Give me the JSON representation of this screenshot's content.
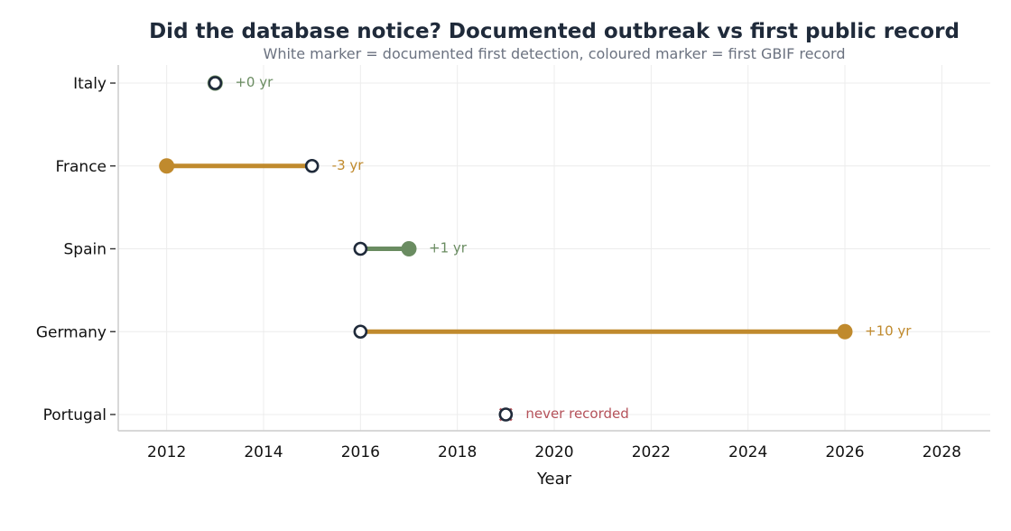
{
  "chart_data": {
    "type": "dumbbell",
    "title": "Did the database notice? Documented outbreak vs first public record",
    "subtitle": "White marker = documented first detection, coloured marker = first GBIF record",
    "xlabel": "Year",
    "ylabel": "",
    "xlim": [
      2011,
      2029
    ],
    "xticks": [
      2012,
      2014,
      2016,
      2018,
      2020,
      2022,
      2024,
      2026,
      2028
    ],
    "grid": true,
    "categories": [
      "Italy",
      "France",
      "Spain",
      "Germany",
      "Portugal"
    ],
    "rows": [
      {
        "country": "Italy",
        "detection": 2013,
        "gbif": 2013,
        "label": "+0 yr",
        "status": "match"
      },
      {
        "country": "France",
        "detection": 2015,
        "gbif": 2012,
        "label": "-3 yr",
        "status": "late"
      },
      {
        "country": "Spain",
        "detection": 2016,
        "gbif": 2017,
        "label": "+1 yr",
        "status": "early"
      },
      {
        "country": "Germany",
        "detection": 2016,
        "gbif": 2026,
        "label": "+10 yr",
        "status": "late"
      },
      {
        "country": "Portugal",
        "detection": 2019,
        "gbif": null,
        "label": "never recorded",
        "status": "missing"
      }
    ],
    "colors": {
      "match": "#6a8c61",
      "early": "#6a8c61",
      "late": "#c08a2d",
      "missing": "#b5525a",
      "detection_marker_stroke": "#1f2a3a",
      "detection_marker_fill": "#ffffff",
      "grid": "#ececec",
      "axis": "#cccccc"
    }
  }
}
